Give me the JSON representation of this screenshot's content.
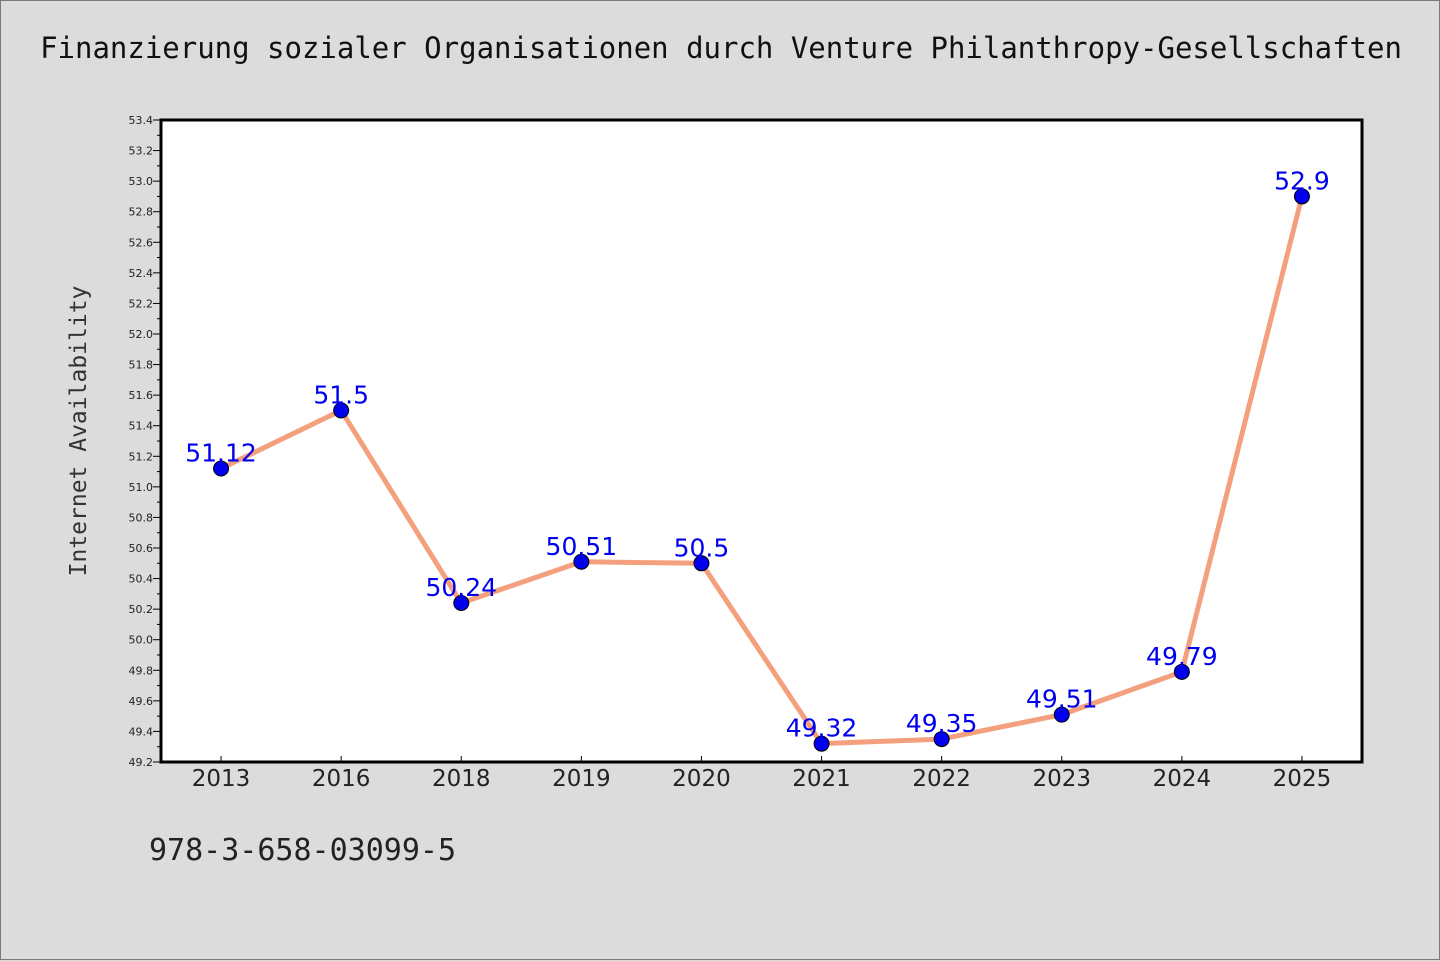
{
  "header": {
    "title": "Finanzierung sozialer Organisationen durch Venture Philanthropy-Gesellschaften"
  },
  "footer": {
    "code": "978-3-658-03099-5"
  },
  "chart_data": {
    "type": "line",
    "title": "Finanzierung sozialer Organisationen durch Venture Philanthropy-Gesellschaften",
    "xlabel": "",
    "ylabel": "Internet Availability",
    "categories": [
      "2013",
      "2016",
      "2018",
      "2019",
      "2020",
      "2021",
      "2022",
      "2023",
      "2024",
      "2025"
    ],
    "series": [
      {
        "values": [
          51.12,
          51.5,
          50.24,
          50.51,
          50.5,
          49.32,
          49.35,
          49.51,
          49.79,
          52.9
        ],
        "labels": [
          "51.12",
          "51.5",
          "50.24",
          "50.51",
          "50.5",
          "49.32",
          "49.35",
          "49.51",
          "49.79",
          "52.9"
        ]
      }
    ],
    "ylim": [
      49.2,
      53.4
    ],
    "yticks": [
      "49.2",
      "49.4",
      "49.6",
      "49.8",
      "50.0",
      "50.2",
      "50.4",
      "50.6",
      "50.8",
      "51.0",
      "51.2",
      "51.4",
      "51.6",
      "51.8",
      "52.0",
      "52.2",
      "52.4",
      "52.6",
      "52.8",
      "53.0",
      "53.2",
      "53.4"
    ],
    "grid": false,
    "legend": "none",
    "colors": {
      "line": "#f4a07e",
      "marker": "#0000ee",
      "label": "#0000ee",
      "plot_bg": "#ffffff",
      "page_bg": "#dcdcdc"
    }
  }
}
